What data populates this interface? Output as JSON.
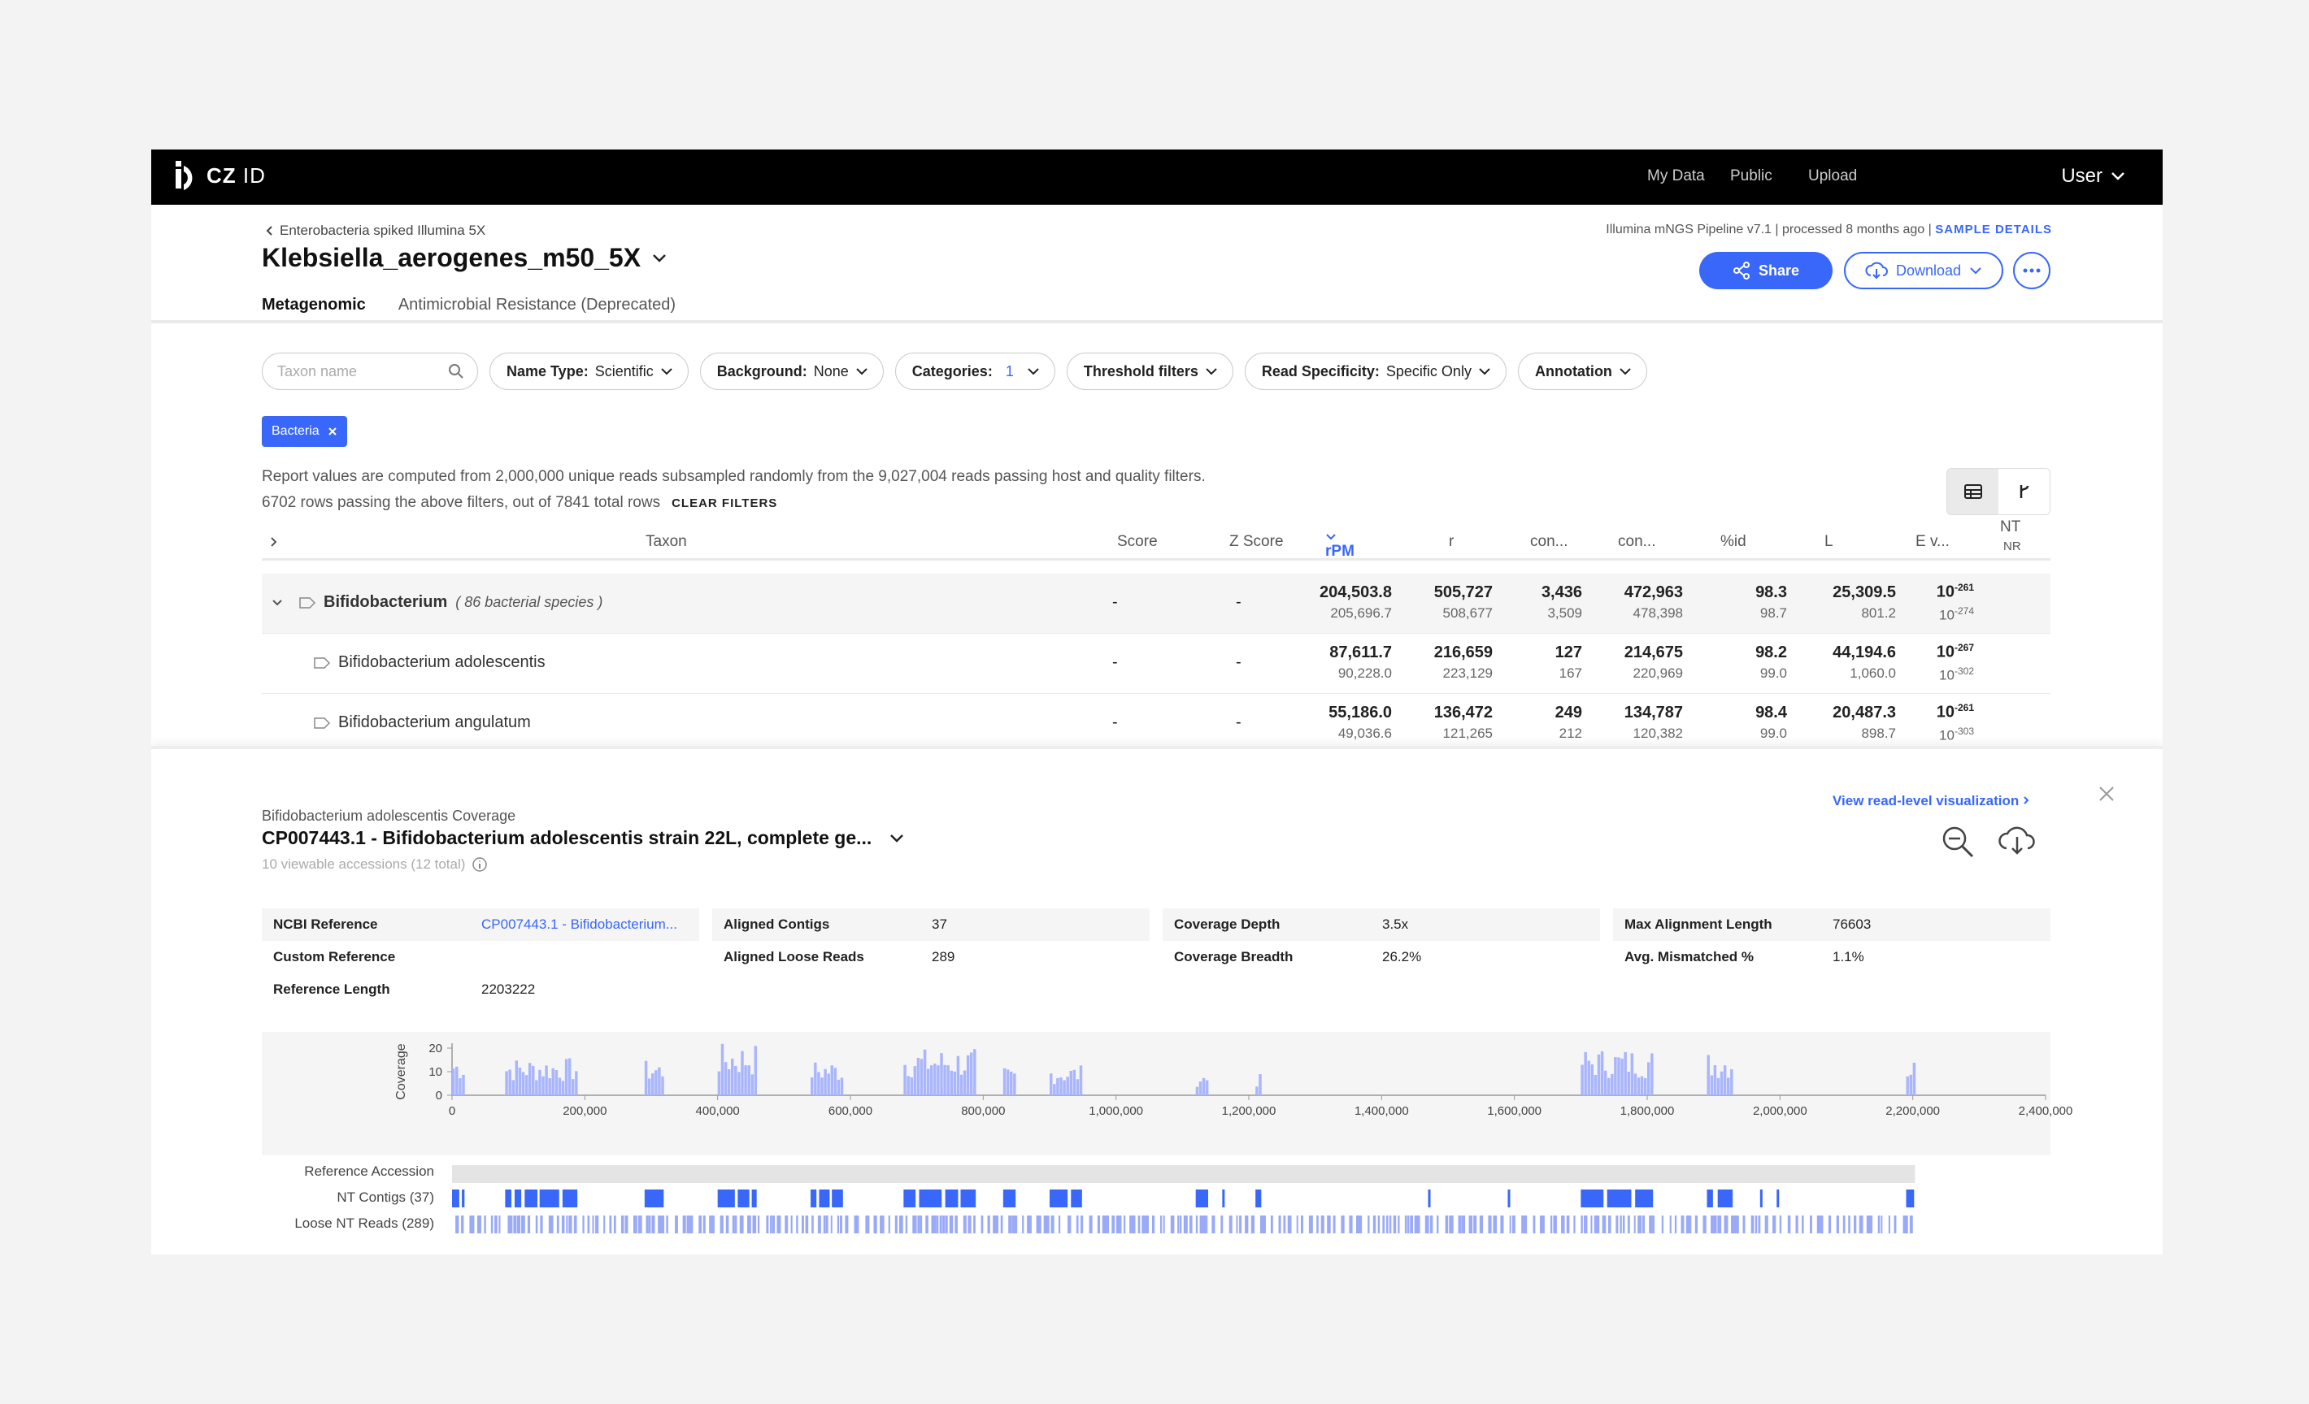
{
  "header": {
    "logo": {
      "brand": "CZ",
      "suffix": "ID"
    },
    "nav": [
      "My Data",
      "Public",
      "Upload"
    ],
    "user": "User"
  },
  "sample": {
    "breadcrumb": "Enterobacteria spiked Illumina 5X",
    "title": "Klebsiella_aerogenes_m50_5X",
    "pipeline": "Illumina mNGS Pipeline v7.1 | processed 8 months ago |",
    "details_link": "SAMPLE DETAILS",
    "share": "Share",
    "download": "Download"
  },
  "tabs": [
    "Metagenomic",
    "Antimicrobial Resistance (Deprecated)"
  ],
  "filters": {
    "search_placeholder": "Taxon name",
    "name_type": {
      "label": "Name Type:",
      "value": "Scientific"
    },
    "background": {
      "label": "Background:",
      "value": "None"
    },
    "categories": {
      "label": "Categories:",
      "value": "1"
    },
    "threshold": "Threshold filters",
    "read_specificity": {
      "label": "Read Specificity:",
      "value": "Specific Only"
    },
    "annotation": "Annotation",
    "active_chip": "Bacteria"
  },
  "report_info": {
    "line1": "Report values are computed from 2,000,000 unique reads subsampled randomly from the 9,027,004 reads passing host and quality filters.",
    "line2": "6702 rows passing the above filters, out of 7841 total rows",
    "clear": "CLEAR FILTERS"
  },
  "table": {
    "columns": {
      "taxon": "Taxon",
      "score": "Score",
      "zscore": "Z Score",
      "rpm": "rPM",
      "r": "r",
      "con1": "con...",
      "con2": "con...",
      "pid": "%id",
      "l": "L",
      "ev": "E v...",
      "nt": "NT",
      "nr": "NR"
    },
    "rows": [
      {
        "name": "Bifidobacterium",
        "note": "( 86 bacterial species )",
        "score": "-",
        "zscore": "-",
        "rpm": [
          "204,503.8",
          "205,696.7"
        ],
        "r": [
          "505,727",
          "508,677"
        ],
        "con1": [
          "3,436",
          "3,509"
        ],
        "con2": [
          "472,963",
          "478,398"
        ],
        "pid": [
          "98.3",
          "98.7"
        ],
        "l": [
          "25,309.5",
          "801.2"
        ],
        "ev": [
          [
            "10",
            "-261"
          ],
          [
            "10",
            "-274"
          ]
        ]
      },
      {
        "name": "Bifidobacterium adolescentis",
        "note": "",
        "score": "-",
        "zscore": "-",
        "rpm": [
          "87,611.7",
          "90,228.0"
        ],
        "r": [
          "216,659",
          "223,129"
        ],
        "con1": [
          "127",
          "167"
        ],
        "con2": [
          "214,675",
          "220,969"
        ],
        "pid": [
          "98.2",
          "99.0"
        ],
        "l": [
          "44,194.6",
          "1,060.0"
        ],
        "ev": [
          [
            "10",
            "-267"
          ],
          [
            "10",
            "-302"
          ]
        ]
      },
      {
        "name": "Bifidobacterium angulatum",
        "note": "",
        "score": "-",
        "zscore": "-",
        "rpm": [
          "55,186.0",
          "49,036.6"
        ],
        "r": [
          "136,472",
          "121,265"
        ],
        "con1": [
          "249",
          "212"
        ],
        "con2": [
          "134,787",
          "120,382"
        ],
        "pid": [
          "98.4",
          "99.0"
        ],
        "l": [
          "20,487.3",
          "898.7"
        ],
        "ev": [
          [
            "10",
            "-261"
          ],
          [
            "10",
            "-303"
          ]
        ]
      }
    ]
  },
  "coverage": {
    "subtitle": "Bifidobacterium adolescentis Coverage",
    "title": "CP007443.1 - Bifidobacterium adolescentis strain 22L, complete ge...",
    "accessions": "10 viewable accessions (12 total)",
    "view_link": "View read-level visualization",
    "meta": [
      [
        {
          "k": "NCBI Reference",
          "v": "CP007443.1 - Bifidobacterium...",
          "link": true
        },
        {
          "k": "Custom Reference",
          "v": ""
        },
        {
          "k": "Reference Length",
          "v": "2203222"
        }
      ],
      [
        {
          "k": "Aligned Contigs",
          "v": "37"
        },
        {
          "k": "Aligned Loose Reads",
          "v": "289"
        }
      ],
      [
        {
          "k": "Coverage Depth",
          "v": "3.5x"
        },
        {
          "k": "Coverage Breadth",
          "v": "26.2%"
        }
      ],
      [
        {
          "k": "Max Alignment Length",
          "v": "76603"
        },
        {
          "k": "Avg. Mismatched %",
          "v": "1.1%"
        }
      ]
    ],
    "tracks": [
      "Reference Accession",
      "NT Contigs (37)",
      "Loose NT Reads (289)"
    ]
  },
  "chart_data": {
    "type": "bar",
    "ylabel": "Coverage",
    "ylim": [
      0,
      20
    ],
    "yticks": [
      0,
      10,
      20
    ],
    "xlim": [
      0,
      2400000
    ],
    "xticks": [
      "0",
      "200,000",
      "400,000",
      "600,000",
      "800,000",
      "1,000,000",
      "1,200,000",
      "1,400,000",
      "1,600,000",
      "1,800,000",
      "2,000,000",
      "2,200,000",
      "2,400,000"
    ],
    "reference_length": 2203222,
    "coverage_regions": [
      [
        0,
        20000,
        17
      ],
      [
        80000,
        190000,
        16
      ],
      [
        290000,
        320000,
        15
      ],
      [
        400000,
        460000,
        22
      ],
      [
        540000,
        590000,
        15
      ],
      [
        680000,
        790000,
        20
      ],
      [
        830000,
        850000,
        12
      ],
      [
        900000,
        950000,
        13
      ],
      [
        1120000,
        1140000,
        10
      ],
      [
        1210000,
        1220000,
        9
      ],
      [
        1700000,
        1810000,
        20
      ],
      [
        1890000,
        1930000,
        19
      ],
      [
        2190000,
        2203222,
        16
      ]
    ]
  },
  "colors": {
    "accent": "#3867fa",
    "coverage_bar": "#a9b6fb",
    "contig": "#3867fa",
    "read": "#9aaaf8"
  }
}
